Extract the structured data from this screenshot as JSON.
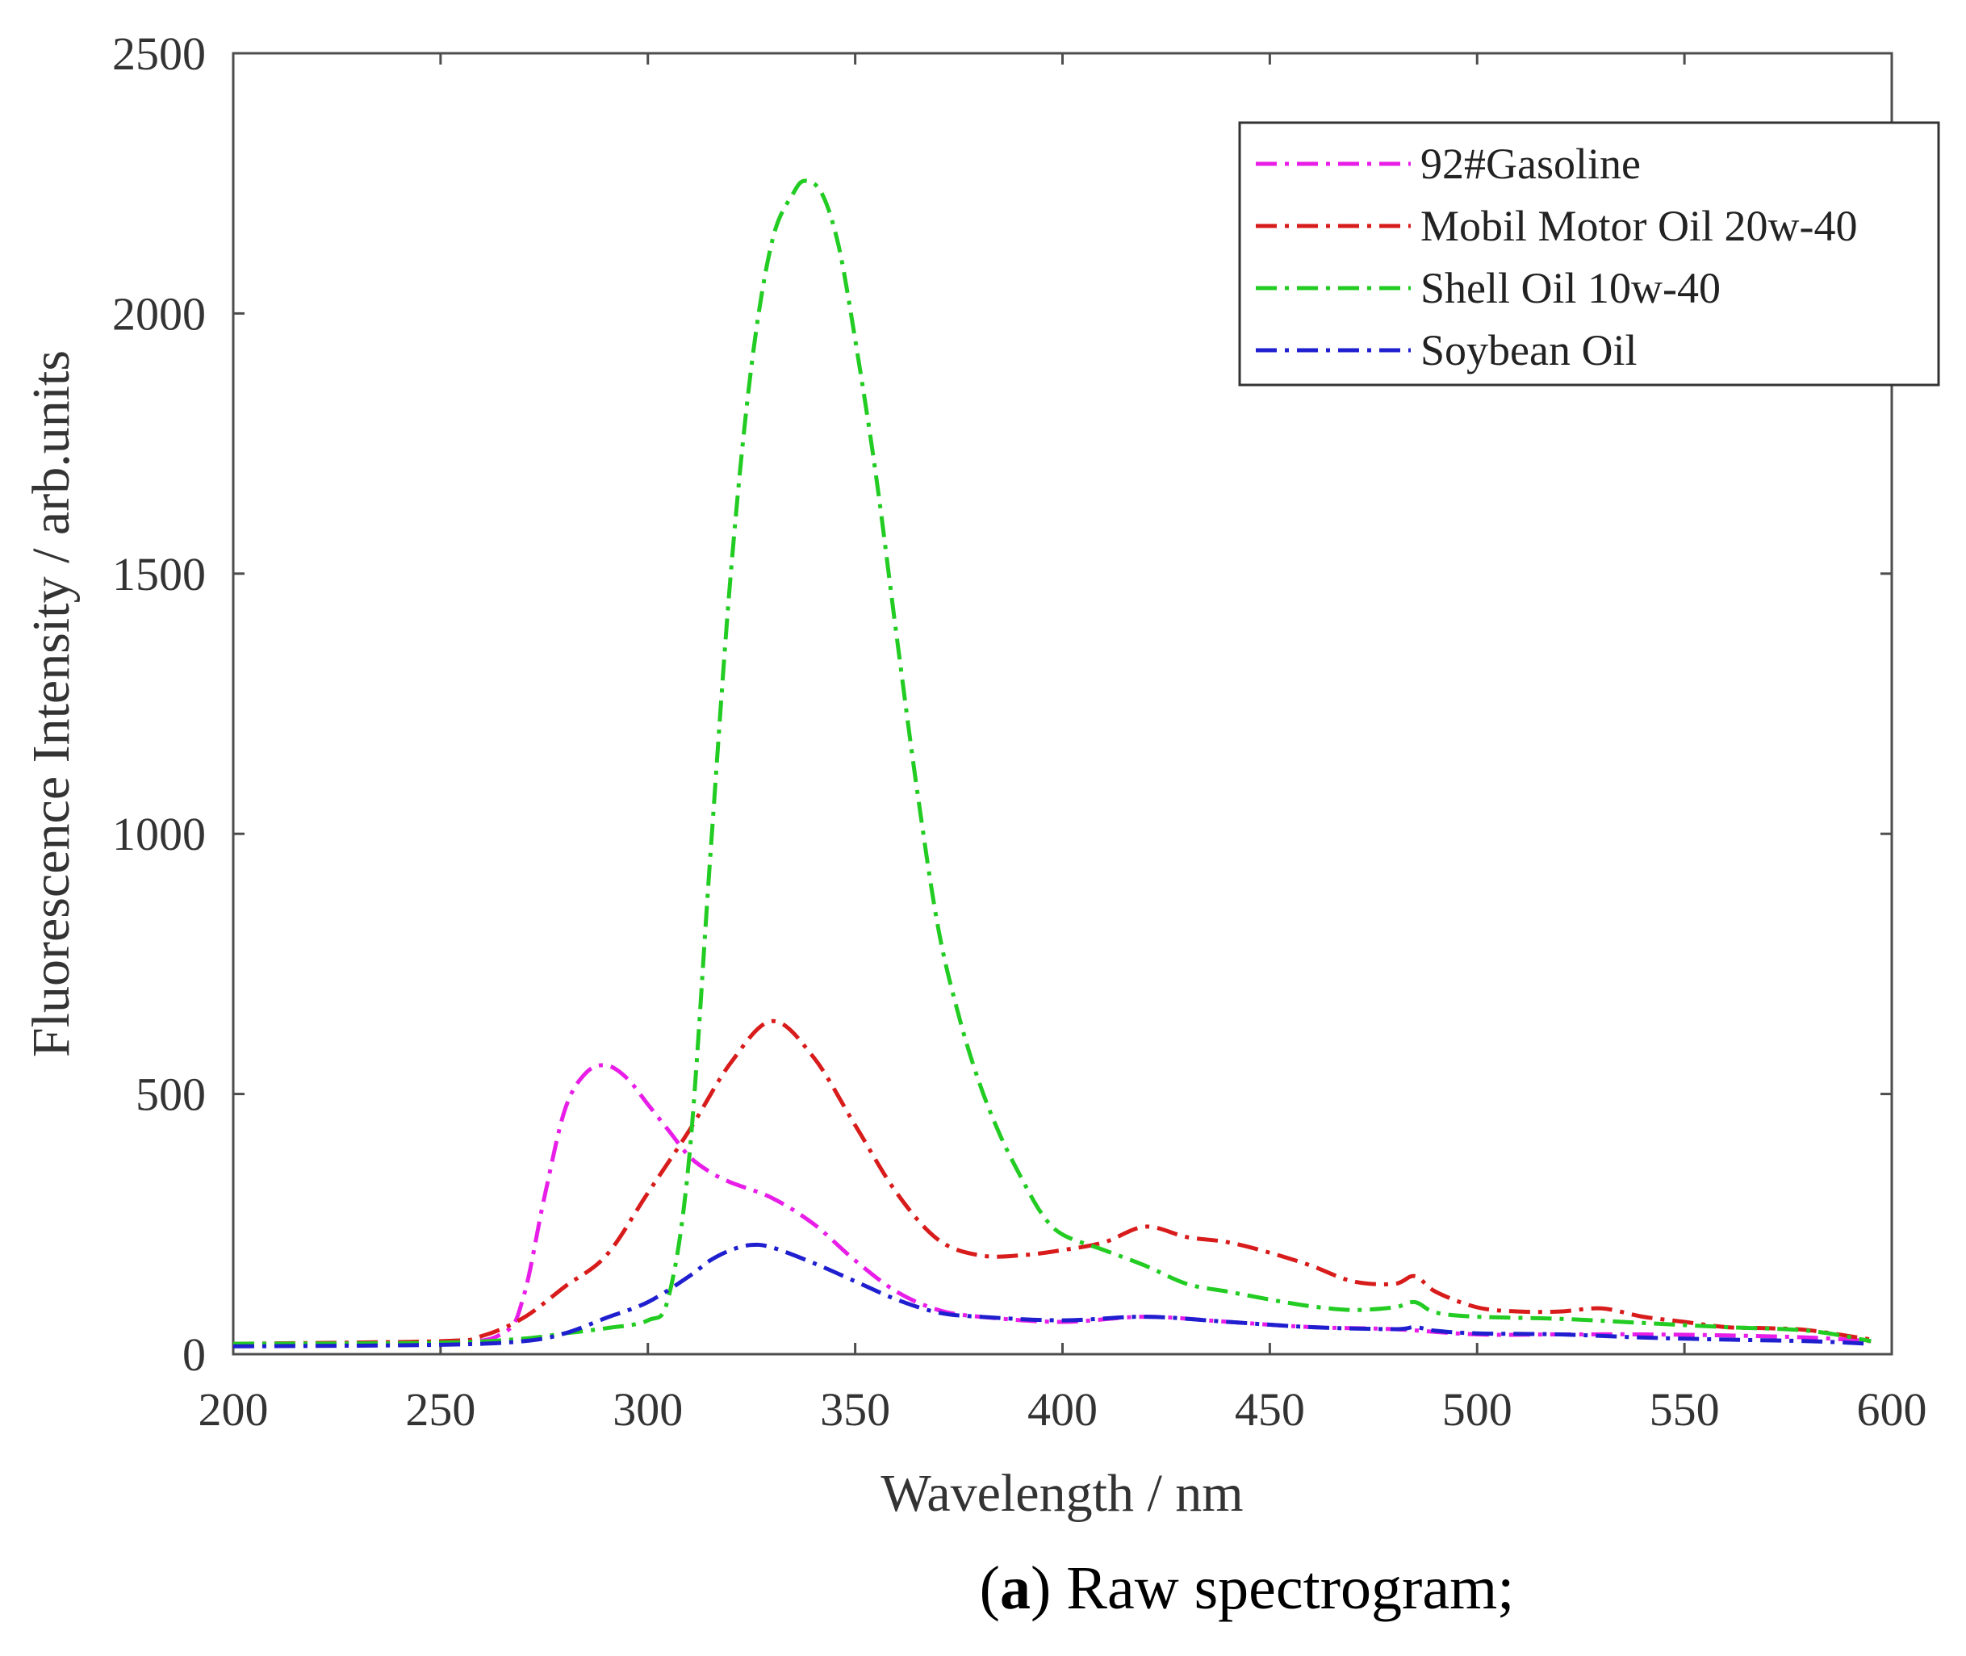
{
  "chart_data": {
    "type": "line",
    "title": "",
    "xlabel": "Wavelength / nm",
    "ylabel": "Fluorescence Intensity / arb.units",
    "xlim": [
      200,
      600
    ],
    "ylim": [
      0,
      2500
    ],
    "xticks": [
      200,
      250,
      300,
      350,
      400,
      450,
      500,
      550,
      600
    ],
    "yticks": [
      0,
      500,
      1000,
      1500,
      2000,
      2500
    ],
    "grid": false,
    "legend_position": "top-right",
    "line_style": "dash-dot",
    "series": [
      {
        "name": "92#Gasoline",
        "color": "#e81ee8",
        "x": [
          200,
          250,
          265,
          270,
          275,
          280,
          285,
          290,
          295,
          300,
          305,
          310,
          315,
          320,
          330,
          340,
          350,
          360,
          370,
          380,
          400,
          420,
          440,
          460,
          480,
          500,
          520,
          540,
          560,
          580,
          595
        ],
        "y": [
          20,
          22,
          40,
          110,
          300,
          470,
          540,
          555,
          530,
          480,
          430,
          380,
          350,
          330,
          300,
          250,
          180,
          120,
          85,
          72,
          62,
          72,
          62,
          52,
          48,
          38,
          38,
          38,
          36,
          32,
          25
        ]
      },
      {
        "name": "Mobil Motor Oil 20w-40",
        "color": "#d81b1b",
        "x": [
          200,
          250,
          260,
          270,
          280,
          290,
          300,
          310,
          320,
          330,
          340,
          350,
          360,
          370,
          380,
          390,
          400,
          410,
          420,
          430,
          440,
          450,
          460,
          470,
          480,
          485,
          490,
          500,
          510,
          520,
          530,
          540,
          550,
          560,
          570,
          580,
          595
        ],
        "y": [
          20,
          25,
          35,
          70,
          130,
          190,
          310,
          430,
          560,
          640,
          570,
          440,
          310,
          220,
          190,
          190,
          200,
          215,
          245,
          225,
          215,
          195,
          170,
          140,
          135,
          150,
          120,
          90,
          82,
          82,
          88,
          72,
          62,
          52,
          50,
          46,
          28
        ]
      },
      {
        "name": "Shell Oil 10w-40",
        "color": "#22cc22",
        "x": [
          200,
          250,
          270,
          280,
          290,
          300,
          305,
          310,
          315,
          320,
          325,
          330,
          335,
          338,
          342,
          346,
          350,
          355,
          360,
          365,
          370,
          375,
          380,
          385,
          390,
          395,
          400,
          410,
          420,
          430,
          440,
          450,
          460,
          470,
          480,
          485,
          490,
          500,
          520,
          540,
          560,
          580,
          595
        ],
        "y": [
          20,
          22,
          30,
          40,
          50,
          65,
          110,
          380,
          950,
          1500,
          1900,
          2140,
          2230,
          2255,
          2230,
          2130,
          1950,
          1690,
          1380,
          1080,
          820,
          650,
          520,
          420,
          340,
          270,
          230,
          200,
          170,
          135,
          120,
          105,
          92,
          85,
          90,
          100,
          80,
          72,
          68,
          60,
          52,
          45,
          25
        ]
      },
      {
        "name": "Soybean Oil",
        "color": "#1f1fd0",
        "x": [
          200,
          250,
          270,
          280,
          290,
          300,
          310,
          315,
          320,
          325,
          330,
          340,
          350,
          360,
          370,
          380,
          400,
          420,
          440,
          460,
          480,
          485,
          490,
          500,
          520,
          540,
          560,
          580,
          595
        ],
        "y": [
          15,
          18,
          25,
          40,
          70,
          100,
          150,
          180,
          200,
          210,
          205,
          175,
          140,
          105,
          80,
          72,
          65,
          72,
          62,
          52,
          48,
          52,
          45,
          40,
          38,
          32,
          28,
          25,
          20
        ]
      }
    ]
  },
  "caption": {
    "label": "a",
    "text": " Raw spectrogram;"
  }
}
